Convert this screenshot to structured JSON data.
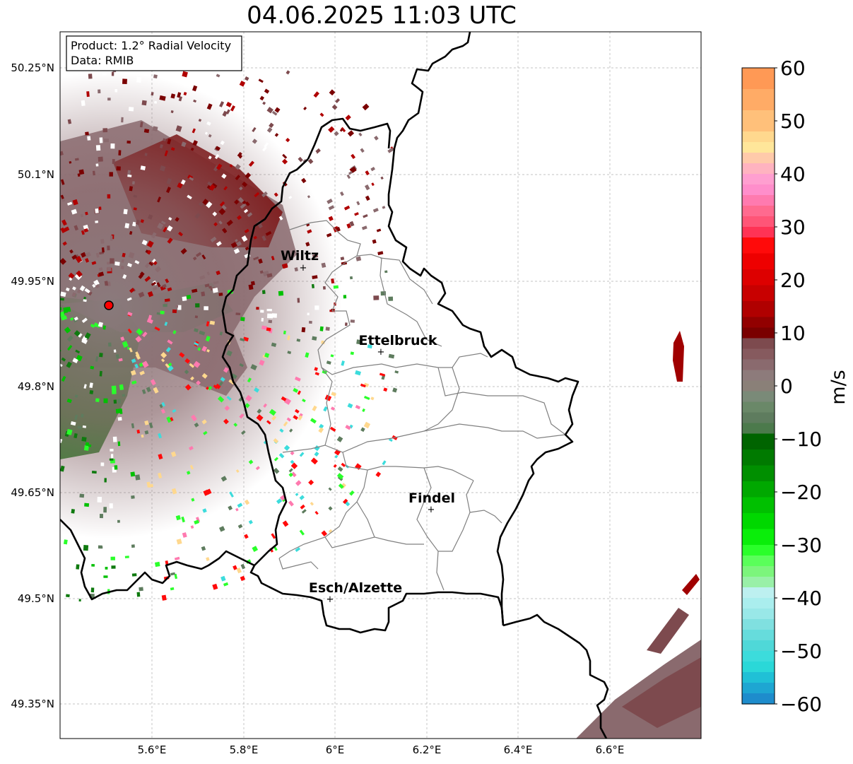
{
  "title": "04.06.2025 11:03 UTC",
  "product_box": {
    "line1": "Product: 1.2° Radial Velocity",
    "line2": "Data: RMIB"
  },
  "colorbar": {
    "unit_label": "m/s",
    "ticks": [
      "60",
      "50",
      "40",
      "30",
      "20",
      "10",
      "0",
      "−10",
      "−20",
      "−30",
      "−40",
      "−50",
      "−60"
    ],
    "range": [
      -60,
      60
    ]
  },
  "axes": {
    "lat_ticks": [
      "50.25°N",
      "50.1°N",
      "49.95°N",
      "49.8°N",
      "49.65°N",
      "49.5°N",
      "49.35°N"
    ],
    "lon_ticks": [
      "5.6°E",
      "5.8°E",
      "6°E",
      "6.2°E",
      "6.4°E",
      "6.6°E"
    ]
  },
  "places": [
    {
      "name": "Wiltz"
    },
    {
      "name": "Ettelbruck"
    },
    {
      "name": "Findel"
    },
    {
      "name": "Esch/Alzette"
    }
  ],
  "colors": {
    "positive_dark": "#7a0000",
    "negative_dark": "#006400",
    "near_zero_pos": "#8a6a6e",
    "near_zero_neg": "#5e7c5e",
    "border": "#000000",
    "canton": "#808080"
  }
}
